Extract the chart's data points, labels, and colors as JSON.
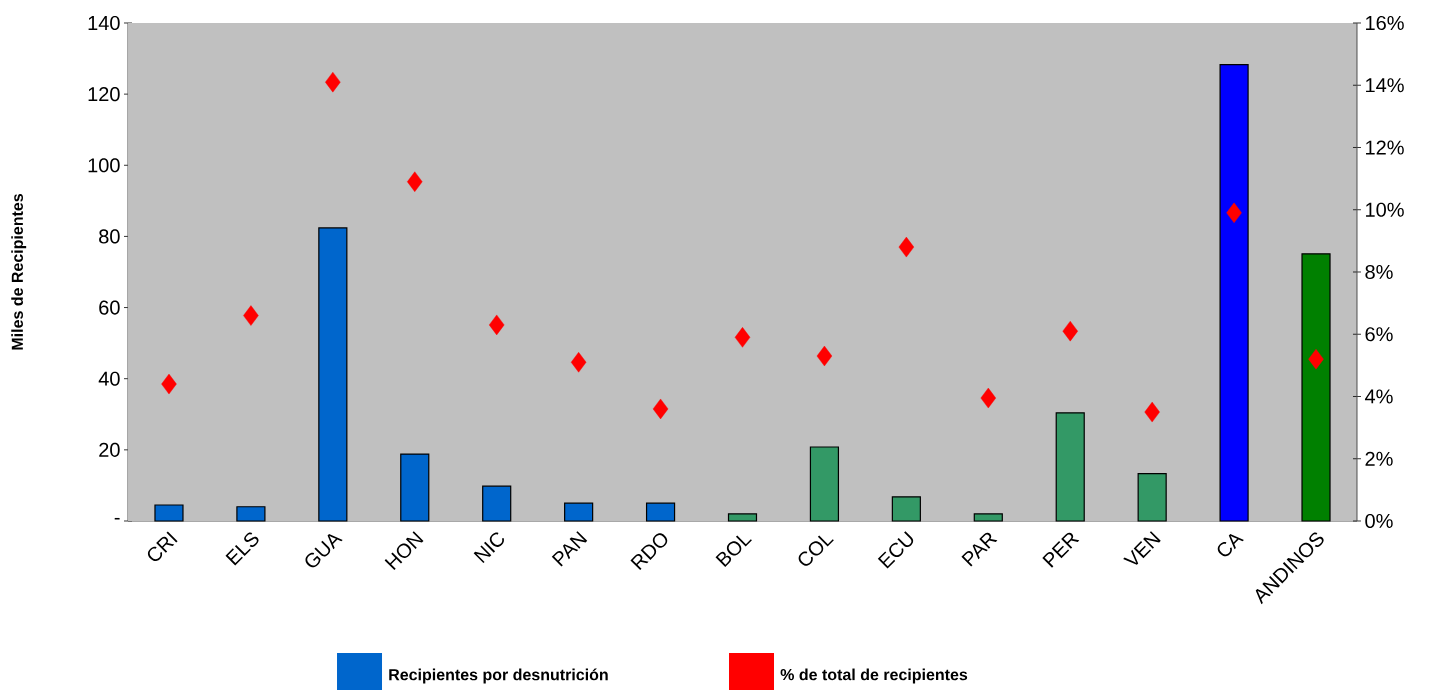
{
  "chart_data": {
    "type": "bar",
    "ylabel": "Miles de Recipientes",
    "categories": [
      "CRI",
      "ELS",
      "GUA",
      "HON",
      "NIC",
      "PAN",
      "RDO",
      "BOL",
      "COL",
      "ECU",
      "PAR",
      "PER",
      "VEN",
      "CA",
      "ANDINOS"
    ],
    "series": [
      {
        "name": "Recipientes por desnutrición",
        "color": "#0066cc",
        "colors": [
          "#0066cc",
          "#0066cc",
          "#0066cc",
          "#0066cc",
          "#0066cc",
          "#0066cc",
          "#0066cc",
          "#339966",
          "#339966",
          "#339966",
          "#339966",
          "#339966",
          "#339966",
          "#0000ff",
          "#008000"
        ],
        "values": [
          4.5,
          4,
          82.4,
          18.8,
          9.8,
          5,
          5,
          2,
          20.8,
          6.8,
          2,
          30.4,
          13.3,
          128.3,
          75.1
        ]
      },
      {
        "name": "% de total de recipientes",
        "type": "scatter",
        "axis": "y2",
        "color": "#ff0000",
        "x": [
          "CRI",
          "ELS",
          "GUA",
          "HON",
          "NIC",
          "PAN",
          "RDO",
          "BOL",
          "COL",
          "ECU",
          "PAR",
          "PER",
          "VEN",
          "CA",
          "ANDINOS"
        ],
        "values": [
          4.4,
          6.6,
          14.1,
          10.9,
          6.3,
          5.1,
          3.6,
          5.9,
          5.3,
          8.8,
          3.95,
          6.1,
          3.5,
          9.9,
          5.2
        ]
      }
    ],
    "ylim": [
      0,
      140
    ],
    "yticks": [
      {
        "value": 0,
        "label": "-"
      },
      20,
      40,
      60,
      80,
      100,
      120,
      140
    ],
    "y2lim": [
      0,
      16
    ],
    "y2ticks": [
      {
        "value": 0,
        "label": "0%"
      },
      {
        "value": 2,
        "label": "2%"
      },
      {
        "value": 4,
        "label": "4%"
      },
      {
        "value": 6,
        "label": "6%"
      },
      {
        "value": 8,
        "label": "8%"
      },
      {
        "value": 10,
        "label": "10%"
      },
      {
        "value": 12,
        "label": "12%"
      },
      {
        "value": 14,
        "label": "14%"
      },
      {
        "value": 16,
        "label": "16%"
      }
    ],
    "marker": "diamond",
    "legend": "bottom"
  }
}
